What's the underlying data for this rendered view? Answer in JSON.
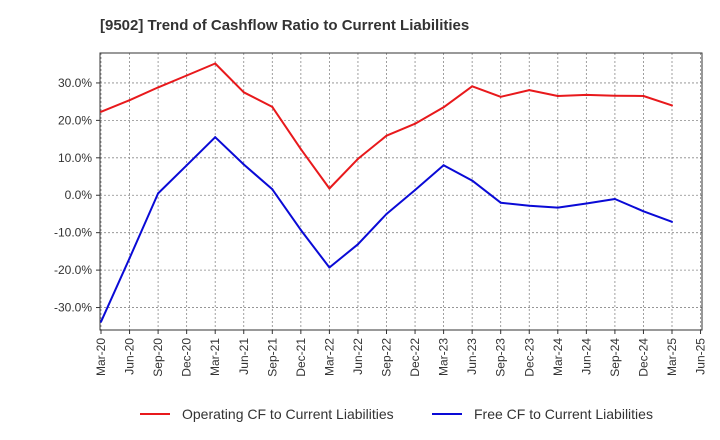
{
  "chart_data": {
    "type": "line",
    "title": "[9502]  Trend of Cashflow Ratio to Current Liabilities",
    "xlabel": "",
    "ylabel": "",
    "x": [
      "Mar-20",
      "Jun-20",
      "Sep-20",
      "Dec-20",
      "Mar-21",
      "Jun-21",
      "Sep-21",
      "Dec-21",
      "Mar-22",
      "Jun-22",
      "Sep-22",
      "Dec-22",
      "Mar-23",
      "Jun-23",
      "Sep-23",
      "Dec-23",
      "Mar-24",
      "Jun-24",
      "Sep-24",
      "Dec-24",
      "Mar-25",
      "Jun-25"
    ],
    "x_tick_labels": [
      "Mar-20",
      "Jun-20",
      "Sep-20",
      "Dec-20",
      "Mar-21",
      "Jun-21",
      "Sep-21",
      "Dec-21",
      "Mar-22",
      "Jun-22",
      "Sep-22",
      "Dec-22",
      "Mar-23",
      "Jun-23",
      "Sep-23",
      "Dec-23",
      "Mar-24",
      "Jun-24",
      "Sep-24",
      "Dec-24",
      "Mar-25",
      "Jun-25"
    ],
    "ylim": [
      -36,
      38
    ],
    "y_ticks": [
      -30,
      -20,
      -10,
      0,
      10,
      20,
      30
    ],
    "y_tick_labels": [
      "-30.0%",
      "-20.0%",
      "-10.0%",
      "0.0%",
      "10.0%",
      "20.0%",
      "30.0%"
    ],
    "grid": true,
    "legend_position": "bottom",
    "series": [
      {
        "name": "Operating CF to Current Liabilities",
        "color": "#e8191c",
        "values": [
          22.3,
          25.4,
          28.8,
          32.0,
          35.2,
          27.5,
          23.6,
          12.3,
          1.8,
          9.7,
          15.9,
          19.1,
          23.5,
          29.1,
          26.3,
          28.1,
          26.5,
          26.8,
          26.6,
          26.5,
          24.0,
          null
        ]
      },
      {
        "name": "Free CF to Current Liabilities",
        "color": "#0a0ad6",
        "values": [
          -33.8,
          -16.8,
          0.5,
          8.0,
          15.5,
          8.2,
          1.6,
          -9.3,
          -19.3,
          -13.1,
          -5.0,
          1.4,
          8.0,
          3.9,
          -2.0,
          -2.8,
          -3.3,
          -2.2,
          -1.0,
          -4.3,
          -7.1,
          null
        ]
      }
    ]
  }
}
